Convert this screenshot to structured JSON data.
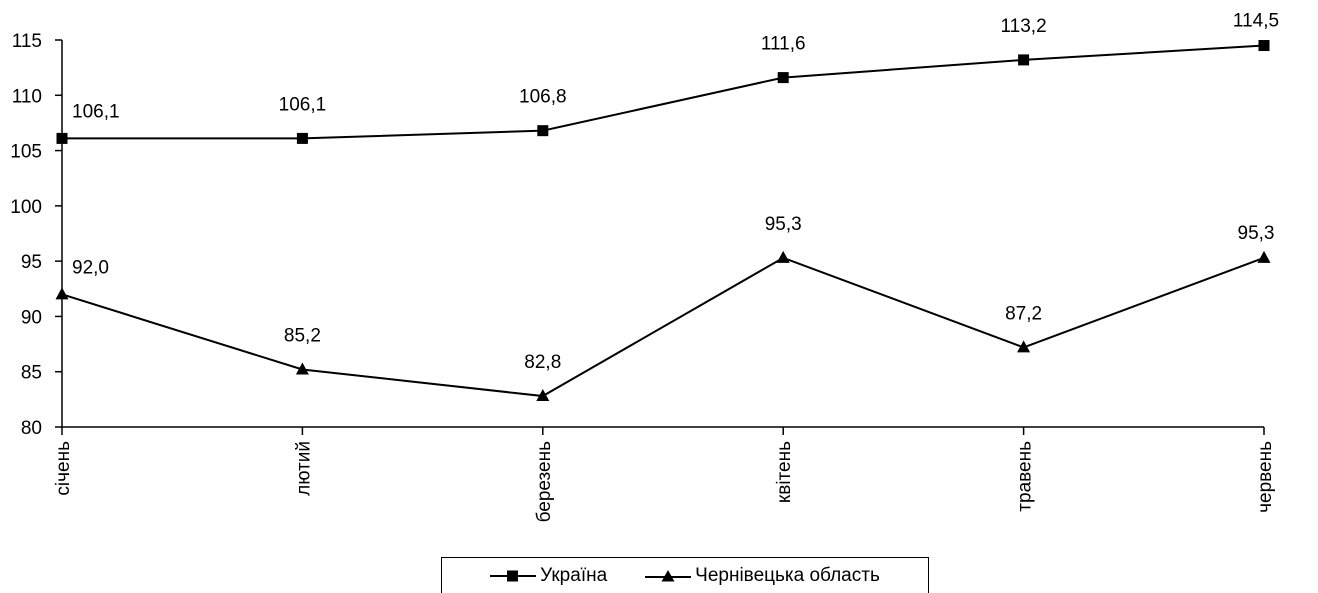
{
  "chart_data": {
    "type": "line",
    "categories": [
      "січень",
      "лютий",
      "березень",
      "квітень",
      "травень",
      "червень"
    ],
    "series": [
      {
        "name": "Україна",
        "values": [
          106.1,
          106.1,
          106.8,
          111.6,
          113.2,
          114.5
        ],
        "labels": [
          "106,1",
          "106,1",
          "106,8",
          "111,6",
          "113,2",
          "114,5"
        ],
        "marker": "square"
      },
      {
        "name": "Чернівецька область",
        "values": [
          92.0,
          85.2,
          82.8,
          95.3,
          87.2,
          95.3
        ],
        "labels": [
          "92,0",
          "85,2",
          "82,8",
          "95,3",
          "87,2",
          "95,3"
        ],
        "marker": "triangle"
      }
    ],
    "yticks": [
      80,
      85,
      90,
      95,
      100,
      105,
      110,
      115
    ],
    "ylim": [
      80,
      115
    ],
    "grid": false,
    "legend_position": "bottom",
    "line_color": "#000000",
    "title": "",
    "xlabel": "",
    "ylabel": ""
  }
}
